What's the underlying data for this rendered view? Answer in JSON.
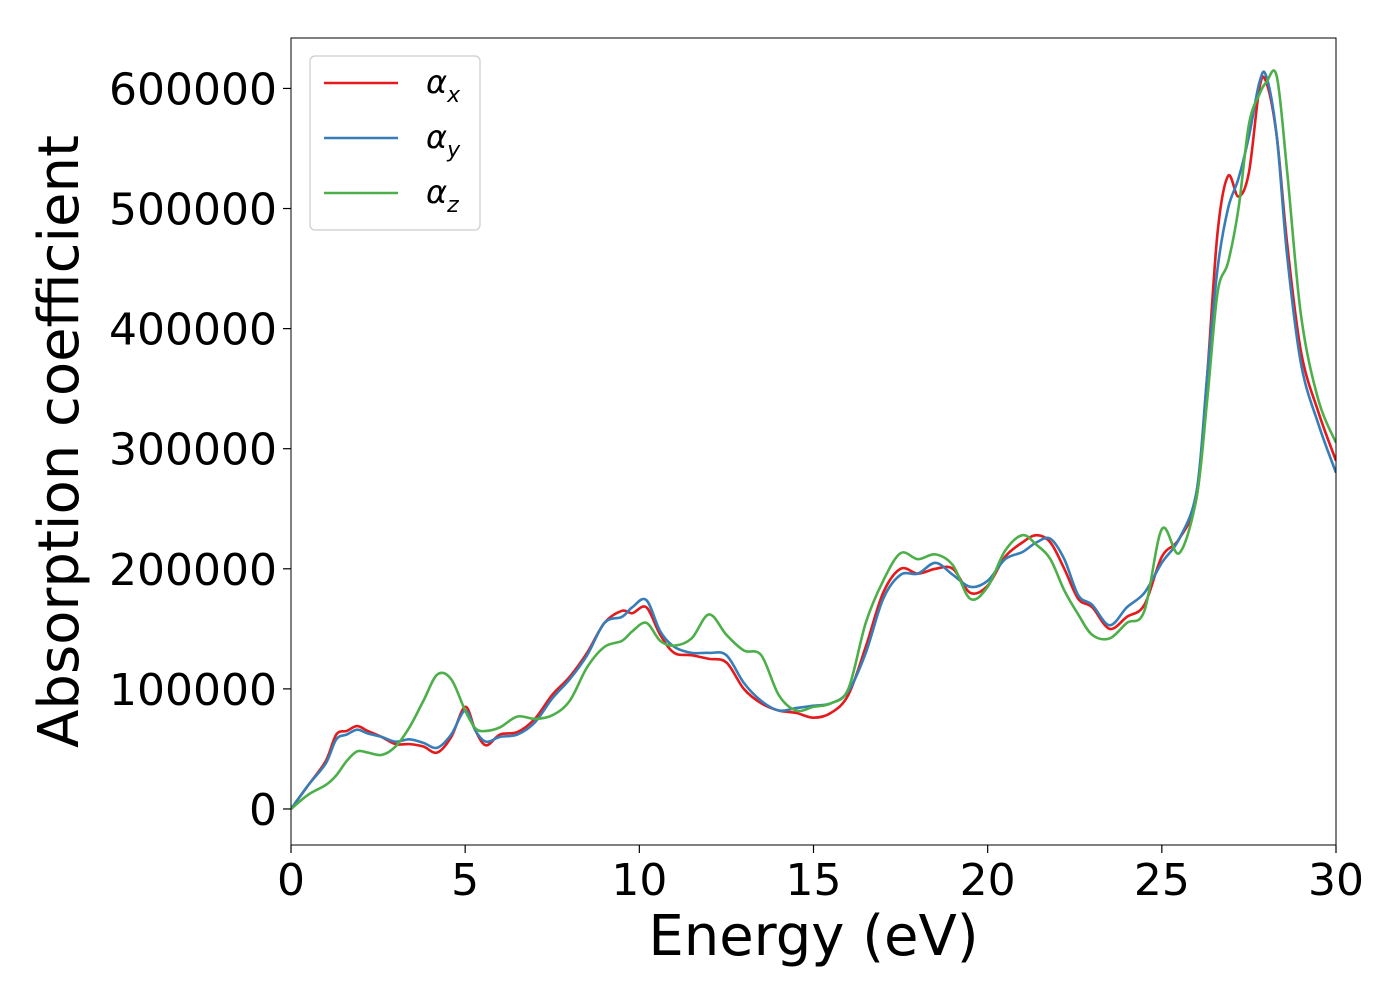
{
  "chart_data": {
    "type": "line",
    "title": "",
    "xlabel": "Energy (eV)",
    "ylabel": "Absorption coefficient",
    "xlim": [
      0,
      30
    ],
    "ylim": [
      -30000,
      642000
    ],
    "xticks": [
      0,
      5,
      10,
      15,
      20,
      25,
      30
    ],
    "xtick_labels": [
      "0",
      "5",
      "10",
      "15",
      "20",
      "25",
      "30"
    ],
    "yticks": [
      0,
      100000,
      200000,
      300000,
      400000,
      500000,
      600000
    ],
    "ytick_labels": [
      "0",
      "100000",
      "200000",
      "300000",
      "400000",
      "500000",
      "600000"
    ],
    "grid": false,
    "legend_position": "top-left",
    "series": [
      {
        "name": "αx",
        "legend_base": "α",
        "legend_sub": "x",
        "color": "#e41a1c",
        "x": [
          0,
          0.5,
          1,
          1.3,
          1.6,
          1.9,
          2.2,
          2.6,
          3.0,
          3.4,
          3.8,
          4.2,
          4.6,
          5.0,
          5.3,
          5.6,
          6.0,
          6.5,
          7.0,
          7.5,
          8.0,
          8.5,
          9.0,
          9.5,
          9.8,
          10.2,
          10.6,
          11.0,
          11.5,
          12.0,
          12.5,
          13.0,
          13.5,
          14.0,
          14.5,
          15.0,
          15.5,
          16.0,
          16.5,
          17.0,
          17.5,
          18.0,
          18.5,
          19.0,
          19.5,
          20.0,
          20.5,
          21.0,
          21.4,
          21.8,
          22.2,
          22.6,
          23.0,
          23.5,
          24.0,
          24.5,
          25.0,
          25.5,
          26.0,
          26.3,
          26.6,
          26.9,
          27.2,
          27.5,
          27.8,
          28.0,
          28.3,
          28.6,
          29.0,
          29.5,
          30.0
        ],
        "y": [
          0,
          20000,
          40000,
          62000,
          65000,
          69000,
          65000,
          60000,
          54000,
          54000,
          52000,
          47000,
          60000,
          85000,
          65000,
          53000,
          62000,
          64000,
          75000,
          95000,
          110000,
          130000,
          155000,
          165000,
          163000,
          168000,
          145000,
          130000,
          128000,
          125000,
          122000,
          100000,
          88000,
          82000,
          80000,
          76000,
          80000,
          95000,
          135000,
          180000,
          200000,
          196000,
          200000,
          200000,
          180000,
          186000,
          210000,
          222000,
          228000,
          222000,
          200000,
          175000,
          168000,
          150000,
          160000,
          170000,
          210000,
          225000,
          260000,
          360000,
          480000,
          527000,
          510000,
          530000,
          600000,
          605000,
          560000,
          470000,
          380000,
          330000,
          290000
        ]
      },
      {
        "name": "αy",
        "legend_base": "α",
        "legend_sub": "y",
        "color": "#377eb8",
        "x": [
          0,
          0.5,
          1,
          1.3,
          1.6,
          1.9,
          2.2,
          2.6,
          3.0,
          3.4,
          3.8,
          4.2,
          4.6,
          5.0,
          5.3,
          5.6,
          6.0,
          6.5,
          7.0,
          7.5,
          8.0,
          8.5,
          9.0,
          9.5,
          9.8,
          10.2,
          10.6,
          11.0,
          11.5,
          12.0,
          12.5,
          13.0,
          13.5,
          14.0,
          14.5,
          15.0,
          15.5,
          16.0,
          16.5,
          17.0,
          17.5,
          18.0,
          18.5,
          19.0,
          19.5,
          20.0,
          20.5,
          21.0,
          21.4,
          21.8,
          22.2,
          22.6,
          23.0,
          23.5,
          24.0,
          24.5,
          25.0,
          25.5,
          26.0,
          26.3,
          26.6,
          26.9,
          27.2,
          27.5,
          27.8,
          28.0,
          28.3,
          28.6,
          29.0,
          29.5,
          30.0
        ],
        "y": [
          0,
          20000,
          38000,
          58000,
          62000,
          66000,
          63000,
          60000,
          56000,
          58000,
          55000,
          51000,
          62000,
          82000,
          65000,
          56000,
          60000,
          62000,
          72000,
          92000,
          108000,
          128000,
          155000,
          160000,
          168000,
          174000,
          148000,
          135000,
          130000,
          130000,
          128000,
          105000,
          90000,
          82000,
          84000,
          86000,
          88000,
          98000,
          130000,
          175000,
          195000,
          196000,
          205000,
          195000,
          185000,
          190000,
          208000,
          214000,
          222000,
          225000,
          208000,
          178000,
          170000,
          153000,
          168000,
          180000,
          205000,
          225000,
          265000,
          360000,
          450000,
          500000,
          525000,
          560000,
          605000,
          610000,
          560000,
          460000,
          370000,
          320000,
          280000
        ]
      },
      {
        "name": "αz",
        "legend_base": "α",
        "legend_sub": "z",
        "color": "#4daf4a",
        "x": [
          0,
          0.5,
          1,
          1.3,
          1.6,
          1.9,
          2.2,
          2.6,
          3.0,
          3.4,
          3.8,
          4.2,
          4.6,
          5.0,
          5.3,
          5.6,
          6.0,
          6.5,
          7.0,
          7.5,
          8.0,
          8.5,
          9.0,
          9.5,
          9.8,
          10.2,
          10.6,
          11.0,
          11.5,
          12.0,
          12.5,
          13.0,
          13.5,
          14.0,
          14.5,
          15.0,
          15.5,
          16.0,
          16.5,
          17.0,
          17.5,
          18.0,
          18.5,
          19.0,
          19.5,
          20.0,
          20.5,
          21.0,
          21.4,
          21.8,
          22.2,
          22.6,
          23.0,
          23.5,
          24.0,
          24.5,
          25.0,
          25.5,
          26.0,
          26.3,
          26.6,
          26.9,
          27.2,
          27.5,
          27.8,
          28.0,
          28.3,
          28.6,
          29.0,
          29.5,
          30.0
        ],
        "y": [
          0,
          12000,
          20000,
          28000,
          40000,
          48000,
          47000,
          45000,
          52000,
          68000,
          90000,
          112000,
          108000,
          82000,
          67000,
          65000,
          68000,
          77000,
          75000,
          78000,
          90000,
          118000,
          135000,
          140000,
          148000,
          155000,
          140000,
          136000,
          142000,
          162000,
          145000,
          132000,
          128000,
          95000,
          82000,
          85000,
          88000,
          100000,
          155000,
          190000,
          213000,
          208000,
          212000,
          203000,
          175000,
          185000,
          215000,
          228000,
          220000,
          208000,
          182000,
          162000,
          145000,
          142000,
          155000,
          165000,
          233000,
          213000,
          260000,
          340000,
          430000,
          455000,
          500000,
          570000,
          595000,
          605000,
          610000,
          530000,
          410000,
          340000,
          305000
        ]
      }
    ]
  }
}
